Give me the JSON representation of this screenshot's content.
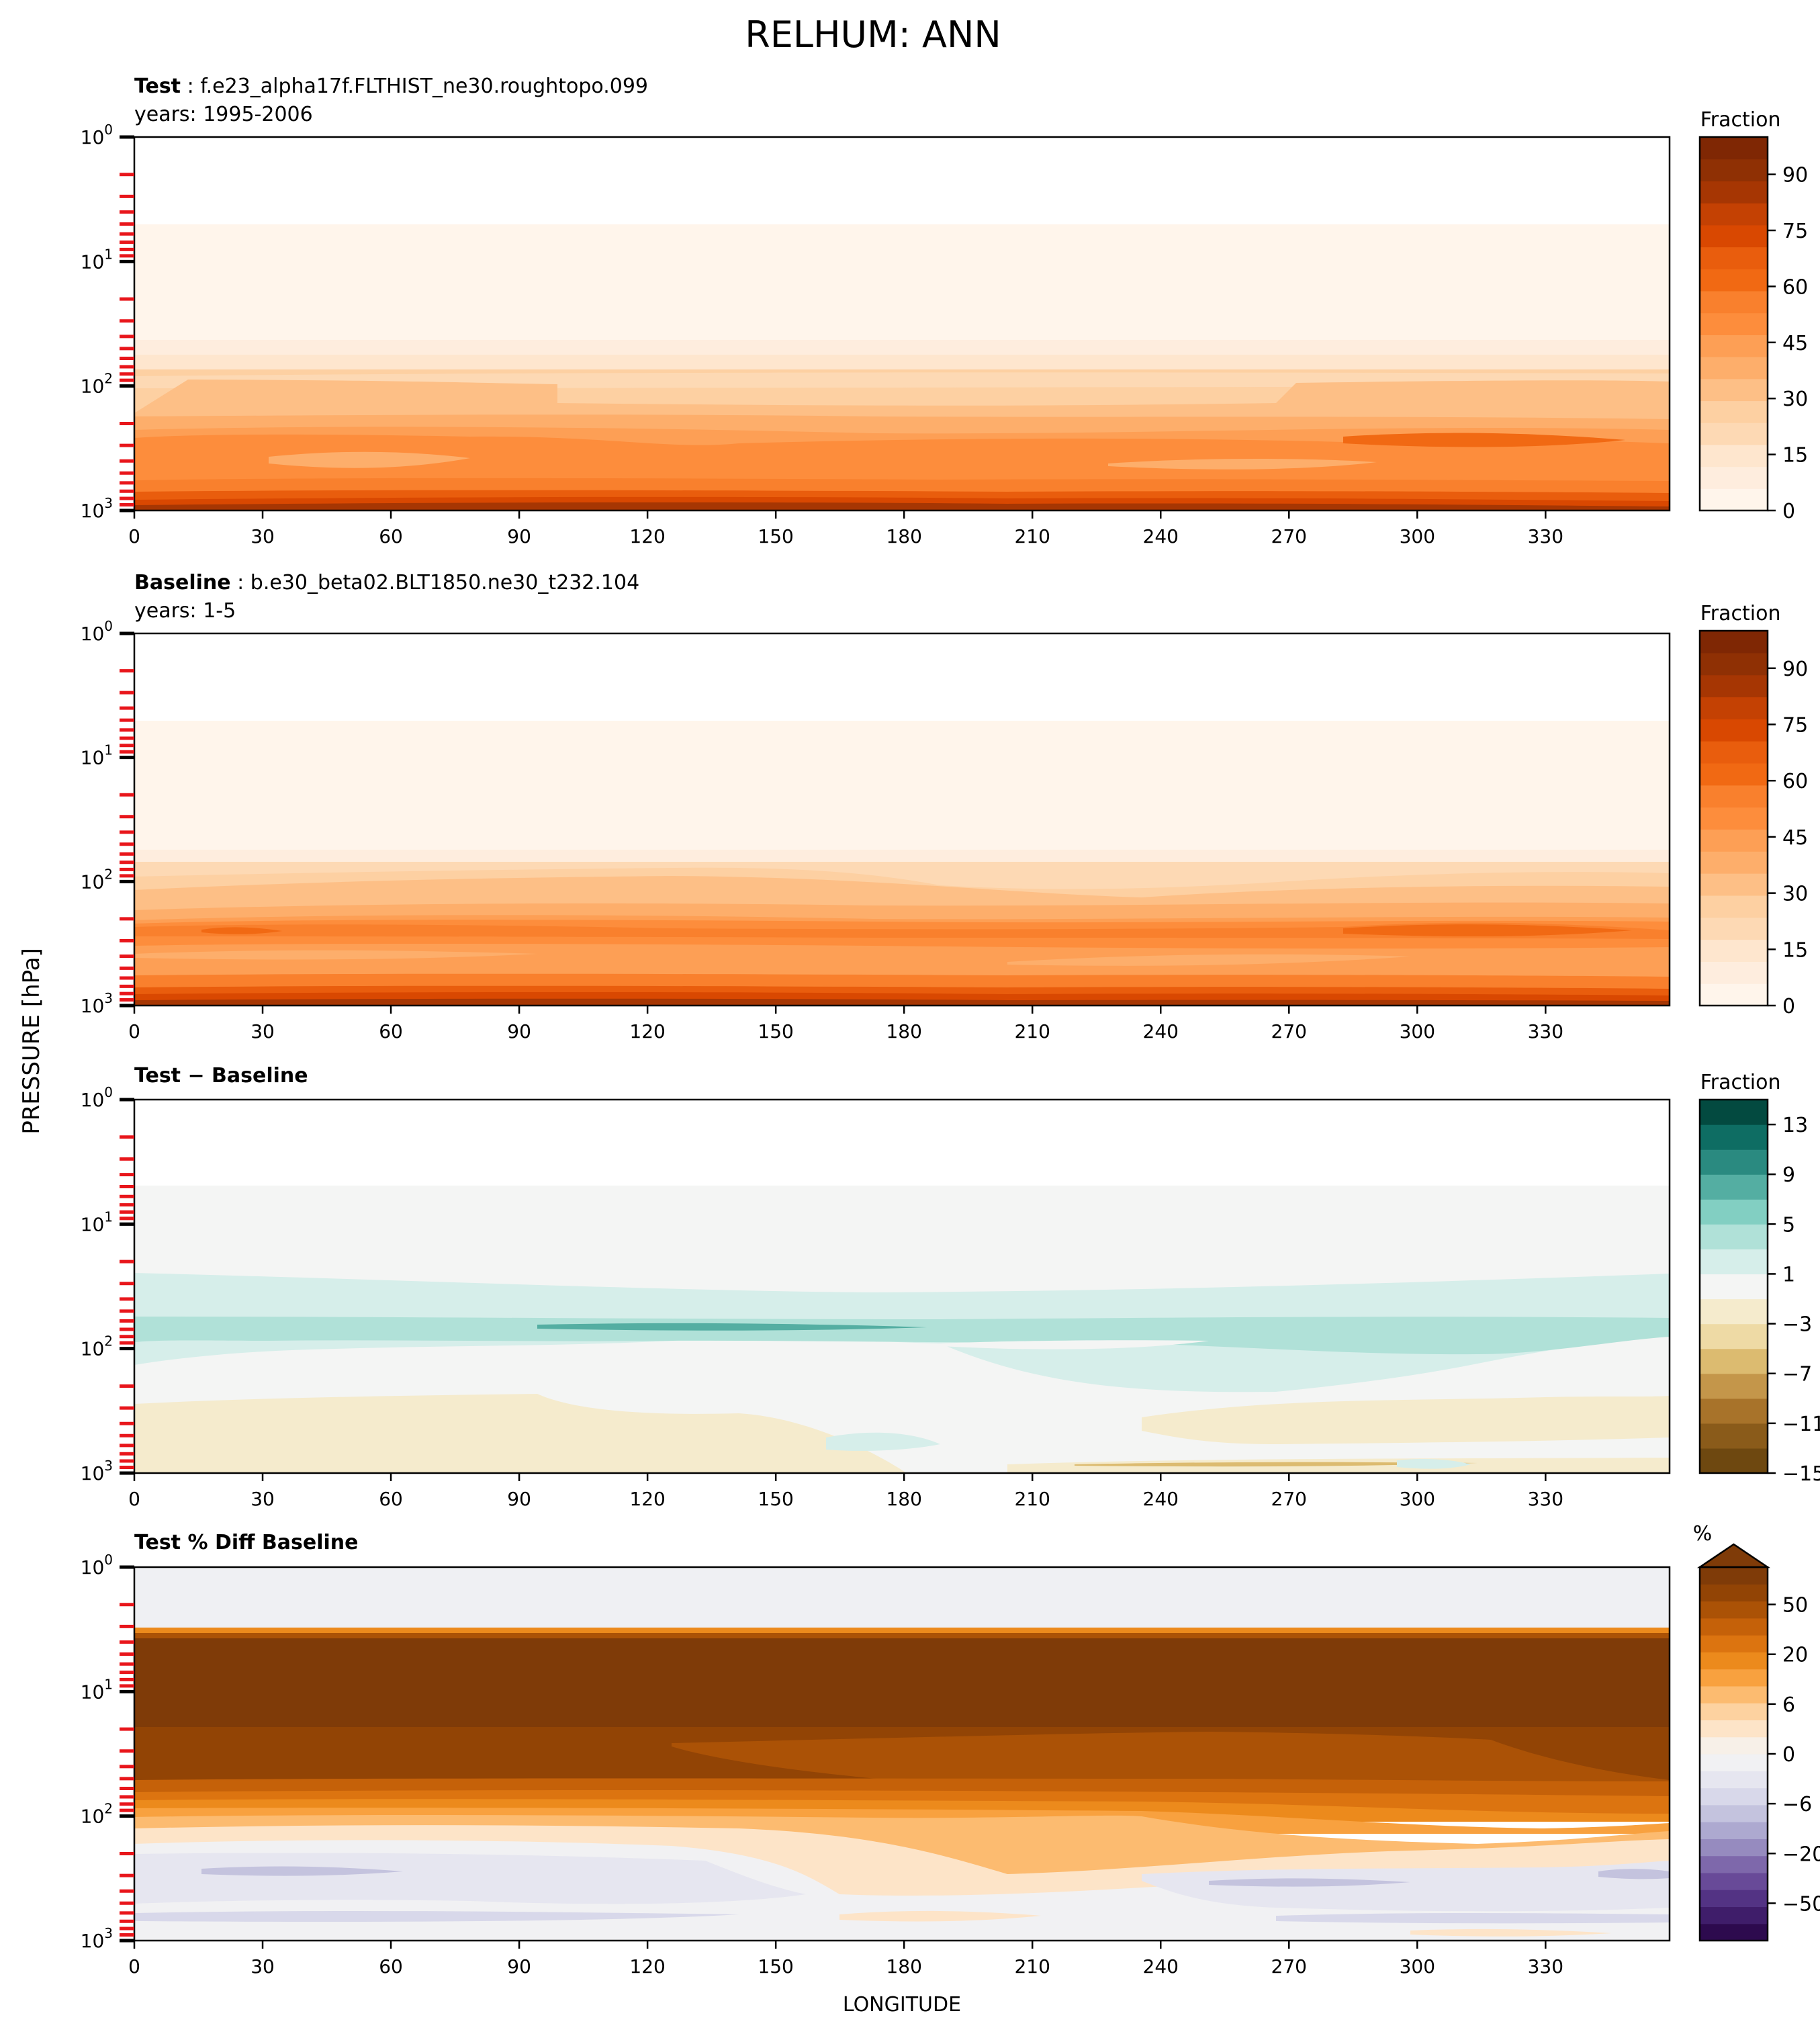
{
  "figure": {
    "suptitle": "RELHUM: ANN",
    "xlabel": "LONGITUDE",
    "ylabel": "PRESSURE [hPa]"
  },
  "chart_data": [
    {
      "type": "heatmap",
      "title_bold": "Test",
      "title_rest": " : f.e23_alpha17f.FLTHIST_ne30.roughtopo.099",
      "subtitle": "years: 1995-2006",
      "xlim": [
        0,
        359
      ],
      "x_ticks": [
        0,
        30,
        60,
        90,
        120,
        150,
        180,
        210,
        240,
        270,
        300,
        330
      ],
      "y_scale": "log",
      "ylim": [
        1000,
        1
      ],
      "y_ticks": [
        {
          "base": "10",
          "exp": "0"
        },
        {
          "base": "10",
          "exp": "1"
        },
        {
          "base": "10",
          "exp": "2"
        },
        {
          "base": "10",
          "exp": "3"
        }
      ],
      "colorbar": {
        "label": "Fraction",
        "ticks": [
          "0",
          "15",
          "30",
          "45",
          "60",
          "75",
          "90"
        ],
        "extend": "neither",
        "colors": [
          "#fff5eb",
          "#feedde",
          "#fee6ce",
          "#fdd9b4",
          "#fdd0a2",
          "#fdbf86",
          "#fdae6b",
          "#fd9f55",
          "#fd8d3c",
          "#f9802d",
          "#f16913",
          "#e95d0d",
          "#d94801",
          "#c44103",
          "#a63603",
          "#8f3004",
          "#7f2704"
        ]
      }
    },
    {
      "type": "heatmap",
      "title_bold": "Baseline",
      "title_rest": " : b.e30_beta02.BLT1850.ne30_t232.104",
      "subtitle": "years: 1-5",
      "xlim": [
        0,
        359
      ],
      "x_ticks": [
        0,
        30,
        60,
        90,
        120,
        150,
        180,
        210,
        240,
        270,
        300,
        330
      ],
      "y_scale": "log",
      "ylim": [
        1000,
        1
      ],
      "y_ticks": [
        {
          "base": "10",
          "exp": "0"
        },
        {
          "base": "10",
          "exp": "1"
        },
        {
          "base": "10",
          "exp": "2"
        },
        {
          "base": "10",
          "exp": "3"
        }
      ],
      "colorbar": {
        "label": "Fraction",
        "ticks": [
          "0",
          "15",
          "30",
          "45",
          "60",
          "75",
          "90"
        ],
        "extend": "neither",
        "colors": [
          "#fff5eb",
          "#feedde",
          "#fee6ce",
          "#fdd9b4",
          "#fdd0a2",
          "#fdbf86",
          "#fdae6b",
          "#fd9f55",
          "#fd8d3c",
          "#f9802d",
          "#f16913",
          "#e95d0d",
          "#d94801",
          "#c44103",
          "#a63603",
          "#8f3004",
          "#7f2704"
        ]
      }
    },
    {
      "type": "heatmap",
      "title_bold": "Test − Baseline",
      "title_rest": "",
      "subtitle": "",
      "xlim": [
        0,
        359
      ],
      "x_ticks": [
        0,
        30,
        60,
        90,
        120,
        150,
        180,
        210,
        240,
        270,
        300,
        330
      ],
      "y_scale": "log",
      "ylim": [
        1000,
        1
      ],
      "y_ticks": [
        {
          "base": "10",
          "exp": "0"
        },
        {
          "base": "10",
          "exp": "1"
        },
        {
          "base": "10",
          "exp": "2"
        },
        {
          "base": "10",
          "exp": "3"
        }
      ],
      "colorbar": {
        "label": "Fraction",
        "ticks": [
          "−15",
          "−11",
          "−7",
          "−3",
          "1",
          "5",
          "9",
          "13"
        ],
        "extend": "neither",
        "colors": [
          "#6e4810",
          "#8a5b1a",
          "#a8732a",
          "#c4964a",
          "#dcbb70",
          "#eedaa5",
          "#f5ebcd",
          "#f4f5f4",
          "#d6eeea",
          "#b0e1d8",
          "#82cfc2",
          "#54aea2",
          "#2a8a80",
          "#0e6d63",
          "#034a40"
        ]
      }
    },
    {
      "type": "heatmap",
      "title_bold": "Test % Diff Baseline",
      "title_rest": "",
      "subtitle": "",
      "xlim": [
        0,
        359
      ],
      "x_ticks": [
        0,
        30,
        60,
        90,
        120,
        150,
        180,
        210,
        240,
        270,
        300,
        330
      ],
      "y_scale": "log",
      "ylim": [
        1000,
        1
      ],
      "y_ticks": [
        {
          "base": "10",
          "exp": "0"
        },
        {
          "base": "10",
          "exp": "1"
        },
        {
          "base": "10",
          "exp": "2"
        },
        {
          "base": "10",
          "exp": "3"
        }
      ],
      "colorbar": {
        "label": "%",
        "ticks": [
          "−50",
          "−20",
          "−6",
          "0",
          "6",
          "20",
          "50"
        ],
        "extend": "max",
        "colors": [
          "#2d0a4e",
          "#3f1d6a",
          "#533384",
          "#684a98",
          "#7e68ab",
          "#968bbf",
          "#ada9d0",
          "#c4c3de",
          "#d8d8ea",
          "#e6e6f0",
          "#f1f1f3",
          "#f7f0e8",
          "#fde4c8",
          "#fdd2a0",
          "#fcbb70",
          "#f8a13f",
          "#ec8a1c",
          "#dc7410",
          "#c56109",
          "#ab5206",
          "#924405",
          "#7f3b08"
        ]
      }
    }
  ]
}
